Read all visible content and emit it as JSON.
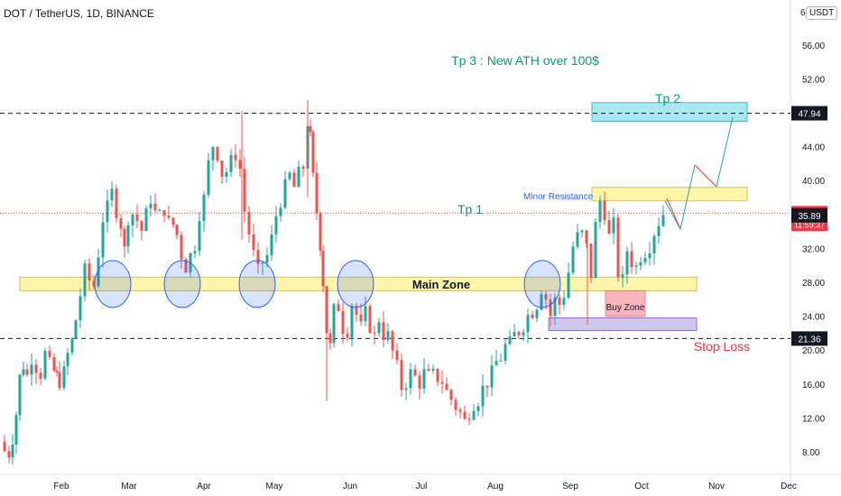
{
  "header": {
    "symbol": "DOT / TetherUS, 1D, BINANCE",
    "currency": "USDT",
    "top_tick": "6"
  },
  "colors": {
    "up": "#26a69a",
    "down": "#ef5350",
    "annotation": "#089981",
    "zone_fill": "#fff59d",
    "zone_stroke": "#c9b63a",
    "circle": "#2962ff",
    "tp2_fill": "#9ce5ee",
    "buy_fill": "#f7a8b0",
    "stop_fill": "#c8bfe7",
    "label_blue": "#2962ff"
  },
  "chart_data": {
    "type": "candlestick",
    "title": "DOT / TetherUS, 1D, BINANCE",
    "xlabel": "",
    "ylabel": "",
    "y_ticks": [
      "8.00",
      "12.00",
      "16.00",
      "20.00",
      "24.00",
      "28.00",
      "32.00",
      "36.00",
      "40.00",
      "44.00",
      "48.00",
      "52.00",
      "56.00"
    ],
    "y_tick_values": [
      8,
      12,
      16,
      20,
      24,
      28,
      32,
      36,
      40,
      44,
      48,
      52,
      56
    ],
    "x_ticks": [
      "Feb",
      "Mar",
      "Apr",
      "May",
      "Jun",
      "Jul",
      "Aug",
      "Sep",
      "Oct",
      "Nov",
      "Dec"
    ],
    "ylim": [
      5.0,
      59.5
    ],
    "close_path": [
      [
        1,
        9.2
      ],
      [
        5,
        8.1
      ],
      [
        10,
        7.8
      ],
      [
        14,
        9.6
      ],
      [
        18,
        12.5
      ],
      [
        22,
        16.8
      ],
      [
        26,
        18.2
      ],
      [
        30,
        17.0
      ],
      [
        35,
        19.1
      ],
      [
        40,
        18.0
      ],
      [
        45,
        17.2
      ],
      [
        50,
        19.6
      ],
      [
        55,
        18.3
      ],
      [
        60,
        17.5
      ],
      [
        66,
        16.3
      ],
      [
        71,
        17.4
      ],
      [
        75,
        19.5
      ],
      [
        80,
        21.1
      ],
      [
        84,
        23.6
      ],
      [
        89,
        26.5
      ],
      [
        94,
        29.4
      ],
      [
        99,
        28.2
      ],
      [
        104,
        27.6
      ],
      [
        109,
        31.4
      ],
      [
        114,
        35.5
      ],
      [
        119,
        36.8
      ],
      [
        124,
        38.6
      ],
      [
        129,
        36.4
      ],
      [
        134,
        34.8
      ],
      [
        138,
        31.8
      ],
      [
        142,
        35.6
      ],
      [
        147,
        36.1
      ],
      [
        152,
        35.3
      ],
      [
        157,
        34.1
      ],
      [
        162,
        36.0
      ],
      [
        167,
        37.9
      ],
      [
        172,
        36.2
      ],
      [
        177,
        35.9
      ],
      [
        182,
        36.6
      ],
      [
        187,
        35.0
      ],
      [
        192,
        34.8
      ],
      [
        196,
        33.6
      ],
      [
        201,
        31.2
      ],
      [
        206,
        29.8
      ],
      [
        211,
        31.2
      ],
      [
        216,
        32.4
      ],
      [
        221,
        36.1
      ],
      [
        226,
        37.9
      ],
      [
        231,
        42.0
      ],
      [
        236,
        44.2
      ],
      [
        241,
        43.1
      ],
      [
        246,
        40.8
      ],
      [
        251,
        41.1
      ],
      [
        256,
        42.3
      ],
      [
        261,
        43.1
      ],
      [
        266,
        41.4
      ],
      [
        271,
        36.4
      ],
      [
        276,
        33.8
      ],
      [
        281,
        31.3
      ],
      [
        286,
        29.3
      ],
      [
        291,
        30.4
      ],
      [
        296,
        31.1
      ],
      [
        301,
        33.2
      ],
      [
        306,
        35.9
      ],
      [
        311,
        37.6
      ],
      [
        316,
        39.3
      ],
      [
        321,
        40.6
      ],
      [
        326,
        39.2
      ],
      [
        331,
        40.8
      ],
      [
        336,
        41.6
      ],
      [
        341,
        46.9
      ],
      [
        344,
        45.0
      ],
      [
        347,
        40.3
      ],
      [
        351,
        36.3
      ],
      [
        355,
        32.5
      ],
      [
        358,
        28.0
      ],
      [
        362,
        22.3
      ],
      [
        366,
        20.4
      ],
      [
        370,
        24.7
      ],
      [
        375,
        25.1
      ],
      [
        380,
        22.6
      ],
      [
        385,
        22.3
      ],
      [
        390,
        25.5
      ],
      [
        395,
        24.2
      ],
      [
        400,
        22.7
      ],
      [
        405,
        24.4
      ],
      [
        410,
        22.8
      ],
      [
        415,
        21.6
      ],
      [
        420,
        23.7
      ],
      [
        425,
        21.8
      ],
      [
        430,
        21.7
      ],
      [
        435,
        19.8
      ],
      [
        440,
        18.0
      ],
      [
        445,
        15.6
      ],
      [
        450,
        16.2
      ],
      [
        455,
        17.3
      ],
      [
        460,
        16.8
      ],
      [
        465,
        16.1
      ],
      [
        470,
        17.3
      ],
      [
        475,
        16.9
      ],
      [
        480,
        17.1
      ],
      [
        485,
        16.7
      ],
      [
        490,
        16.3
      ],
      [
        495,
        15.1
      ],
      [
        500,
        14.2
      ],
      [
        505,
        13.3
      ],
      [
        510,
        12.6
      ],
      [
        515,
        11.6
      ],
      [
        520,
        12.7
      ],
      [
        525,
        13.7
      ],
      [
        530,
        14.1
      ],
      [
        535,
        15.5
      ],
      [
        540,
        16.2
      ],
      [
        545,
        17.3
      ],
      [
        550,
        18.6
      ],
      [
        555,
        19.1
      ],
      [
        560,
        20.5
      ],
      [
        565,
        20.8
      ],
      [
        570,
        21.8
      ],
      [
        575,
        22.2
      ],
      [
        580,
        22.9
      ],
      [
        585,
        24.1
      ],
      [
        590,
        24.5
      ],
      [
        595,
        25.4
      ],
      [
        600,
        27.3
      ],
      [
        605,
        26.1
      ],
      [
        610,
        24.1
      ],
      [
        615,
        25.9
      ],
      [
        620,
        25.4
      ],
      [
        625,
        26.6
      ],
      [
        630,
        29.2
      ],
      [
        635,
        32.2
      ],
      [
        640,
        33.4
      ],
      [
        645,
        33.7
      ],
      [
        650,
        32.1
      ],
      [
        655,
        28.9
      ],
      [
        660,
        34.7
      ],
      [
        665,
        37.6
      ],
      [
        670,
        36.2
      ],
      [
        675,
        33.4
      ],
      [
        680,
        34.8
      ],
      [
        685,
        29.1
      ],
      [
        690,
        28.2
      ],
      [
        695,
        31.8
      ],
      [
        700,
        30.4
      ],
      [
        705,
        29.8
      ],
      [
        710,
        31.1
      ],
      [
        715,
        31.6
      ],
      [
        720,
        32.3
      ],
      [
        725,
        33.9
      ],
      [
        730,
        35.1
      ],
      [
        735,
        36.1
      ]
    ],
    "levels": [
      {
        "name": "Tp 2 line",
        "value": 47.94,
        "style": "dashed"
      },
      {
        "name": "Stop Loss line",
        "value": 21.36,
        "style": "dashed"
      },
      {
        "name": "current price",
        "value": 36.15,
        "style": "dotted"
      },
      {
        "name": "Tp 1 line",
        "value": 36.3,
        "style": "dotted"
      }
    ],
    "price_labels": [
      {
        "label": "47.94",
        "value": 47.94,
        "color": "#131722"
      },
      {
        "label": "36.15",
        "sub": "11:59:37",
        "value": 36.15,
        "color": "#f23645"
      },
      {
        "label": "35.89",
        "value": 35.89,
        "color": "#131722"
      },
      {
        "label": "21.36",
        "value": 21.36,
        "color": "#131722"
      }
    ],
    "zones": [
      {
        "name": "Main Zone",
        "label": "Main Zone",
        "low": 27.0,
        "high": 28.6
      },
      {
        "name": "Minor Resistance zone",
        "low": 37.6,
        "high": 39.2
      },
      {
        "name": "Tp 2 zone",
        "low": 47.0,
        "high": 49.2
      },
      {
        "name": "Buy Zone",
        "label": "Buy Zone",
        "low": 24.0,
        "high": 27.0
      },
      {
        "name": "Stop zone",
        "low": 22.3,
        "high": 23.8
      }
    ],
    "circles_at_price": 27.8,
    "annotations": {
      "tp3": "Tp 3 : New ATH over 100$",
      "tp2": "Tp 2",
      "tp1": "Tp 1",
      "minor_resistance": "Minor Resistance",
      "main_zone": "Main Zone",
      "buy_zone": "Buy Zone",
      "stop_loss": "Stop Loss"
    }
  }
}
